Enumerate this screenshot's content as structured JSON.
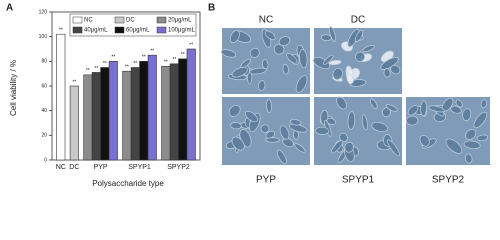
{
  "chart_data": {
    "type": "bar",
    "panel": "A",
    "x_label": "Polysaccharide type",
    "y_label": "Cell viability / %",
    "categories": [
      "NC",
      "DC",
      "PYP",
      "SPYP1",
      "SPYP2"
    ],
    "ylim": [
      0,
      120
    ],
    "yticks": [
      0,
      20,
      40,
      60,
      80,
      100,
      120
    ],
    "series": [
      {
        "name": "NC",
        "color": "#ffffff",
        "values": [
          102,
          null,
          null,
          null,
          null
        ],
        "significance": [
          "**",
          null,
          null,
          null,
          null
        ]
      },
      {
        "name": "DC",
        "color": "#c8c8c8",
        "values": [
          null,
          60,
          null,
          null,
          null
        ],
        "significance": [
          null,
          "**",
          null,
          null,
          null
        ]
      },
      {
        "name": "20μg/mL",
        "color": "#8c8c8c",
        "values": [
          null,
          null,
          69,
          72,
          76
        ],
        "significance": [
          null,
          null,
          "**",
          "**",
          "**"
        ]
      },
      {
        "name": "40μg/mL",
        "color": "#444444",
        "values": [
          null,
          null,
          71,
          75,
          78
        ],
        "significance": [
          null,
          null,
          "**",
          "**",
          "**"
        ]
      },
      {
        "name": "60μg/mL",
        "color": "#111111",
        "values": [
          null,
          null,
          75,
          80,
          82
        ],
        "significance": [
          null,
          null,
          "**",
          "**",
          "**"
        ]
      },
      {
        "name": "100μg/mL",
        "color": "#7a70d2",
        "values": [
          null,
          null,
          80,
          85,
          90
        ],
        "significance": [
          null,
          null,
          "**",
          "**",
          "**"
        ]
      }
    ]
  },
  "images": {
    "panel": "B",
    "labels": [
      "NC",
      "DC",
      "PYP",
      "SPYP1",
      "SPYP2"
    ]
  }
}
